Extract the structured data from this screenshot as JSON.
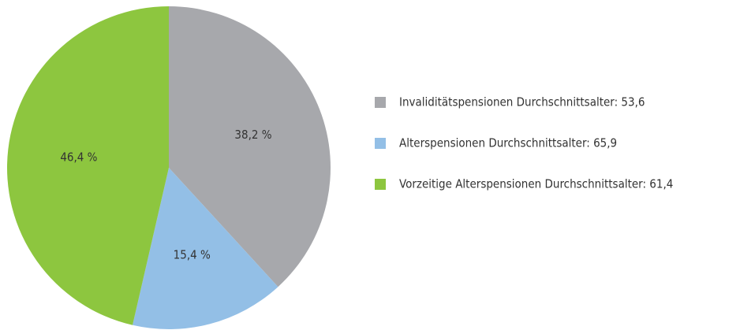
{
  "chart_data": {
    "type": "pie",
    "categories": [
      "Invaliditätspensionen Durchschnittsalter: 53,6",
      "Alterspensionen Durchschnittsalter: 65,9",
      "Vorzeitige Alterspensionen Durchschnittsalter: 61,4"
    ],
    "values": [
      38.2,
      15.4,
      46.4
    ],
    "value_labels": [
      "38,2 %",
      "15,4 %",
      "46,4 %"
    ],
    "colors": [
      "#a7a8ac",
      "#93bfe6",
      "#8dc63f"
    ],
    "legend": "right"
  }
}
